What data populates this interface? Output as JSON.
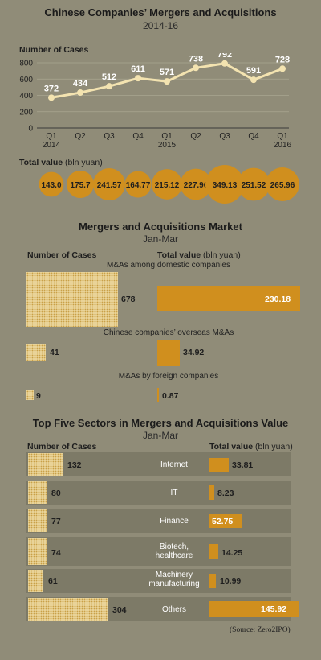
{
  "section1": {
    "title": "Chinese Companies’ Mergers and Acquisitions",
    "subtitle": "2014-16",
    "y_label": "Number of Cases",
    "total_label_bold": "Total value",
    "total_label_unit": "(bln yuan)"
  },
  "section2": {
    "title": "Mergers and Acquisitions Market",
    "subtitle": "Jan-Mar",
    "cases_header": "Number of Cases",
    "value_header_bold": "Total value",
    "value_header_unit": "(bln yuan)",
    "rows": [
      {
        "label": "M&As among domestic companies",
        "cases": "678",
        "value": "230.18"
      },
      {
        "label": "Chinese companies’ overseas M&As",
        "cases": "41",
        "value": "34.92"
      },
      {
        "label": "M&As by foreign companies",
        "cases": "9",
        "value": "0.87"
      }
    ]
  },
  "section3": {
    "title": "Top Five Sectors in Mergers and Acquisitions Value",
    "subtitle": "Jan-Mar",
    "cases_header": "Number of Cases",
    "value_header_bold": "Total value",
    "value_header_unit": "(bln yuan)",
    "rows": [
      {
        "sector": "Internet",
        "cases": "132",
        "value": "33.81"
      },
      {
        "sector": "IT",
        "cases": "80",
        "value": "8.23"
      },
      {
        "sector": "Finance",
        "cases": "77",
        "value": "52.75"
      },
      {
        "sector": "Biotech,\nhealthcare",
        "cases": "74",
        "value": "14.25"
      },
      {
        "sector": "Machinery\nmanufacturing",
        "cases": "61",
        "value": "10.99"
      },
      {
        "sector": "Others",
        "cases": "304",
        "value": "145.92"
      }
    ],
    "source": "(Source: Zero2IPO)"
  },
  "chart_data": [
    {
      "type": "line",
      "title": "Chinese Companies’ Mergers and Acquisitions",
      "subtitle": "2014-16",
      "ylabel": "Number of Cases",
      "x": [
        "Q1 2014",
        "Q2",
        "Q3",
        "Q4",
        "Q1 2015",
        "Q2",
        "Q3",
        "Q4",
        "Q1 2016"
      ],
      "tick_labels": [
        [
          "Q1",
          "2014"
        ],
        [
          "Q2",
          ""
        ],
        [
          "Q3",
          ""
        ],
        [
          "Q4",
          ""
        ],
        [
          "Q1",
          "2015"
        ],
        [
          "Q2",
          ""
        ],
        [
          "Q3",
          ""
        ],
        [
          "Q4",
          ""
        ],
        [
          "Q1",
          "2016"
        ]
      ],
      "values": [
        372,
        434,
        512,
        611,
        571,
        738,
        792,
        591,
        728
      ],
      "yticks": [
        0,
        200,
        400,
        600,
        800
      ],
      "ylim": [
        0,
        800
      ],
      "grid": true,
      "color": "#f3e3b0"
    },
    {
      "type": "bubble",
      "title": "Total value (bln yuan)",
      "values": [
        143.0,
        175.7,
        241.57,
        164.77,
        215.12,
        227.96,
        349.13,
        251.52,
        265.96
      ],
      "labels": [
        "143.0",
        "175.7",
        "241.57",
        "164.77",
        "215.12",
        "227.96",
        "349.13",
        "251.52",
        "265.96"
      ],
      "color": "#d08f1e"
    },
    {
      "type": "bar",
      "title": "Mergers and Acquisitions Market",
      "categories": [
        "M&As among domestic companies",
        "Chinese companies’ overseas M&As",
        "M&As by foreign companies"
      ],
      "series": [
        {
          "name": "Number of Cases",
          "values": [
            678,
            41,
            9
          ]
        },
        {
          "name": "Total value (bln yuan)",
          "values": [
            230.18,
            34.92,
            0.87
          ]
        }
      ]
    },
    {
      "type": "bar",
      "title": "Top Five Sectors in Mergers and Acquisitions Value",
      "categories": [
        "Internet",
        "IT",
        "Finance",
        "Biotech, healthcare",
        "Machinery manufacturing",
        "Others"
      ],
      "series": [
        {
          "name": "Number of Cases",
          "values": [
            132,
            80,
            77,
            74,
            61,
            304
          ]
        },
        {
          "name": "Total value (bln yuan)",
          "values": [
            33.81,
            8.23,
            52.75,
            14.25,
            10.99,
            145.92
          ]
        }
      ]
    }
  ]
}
